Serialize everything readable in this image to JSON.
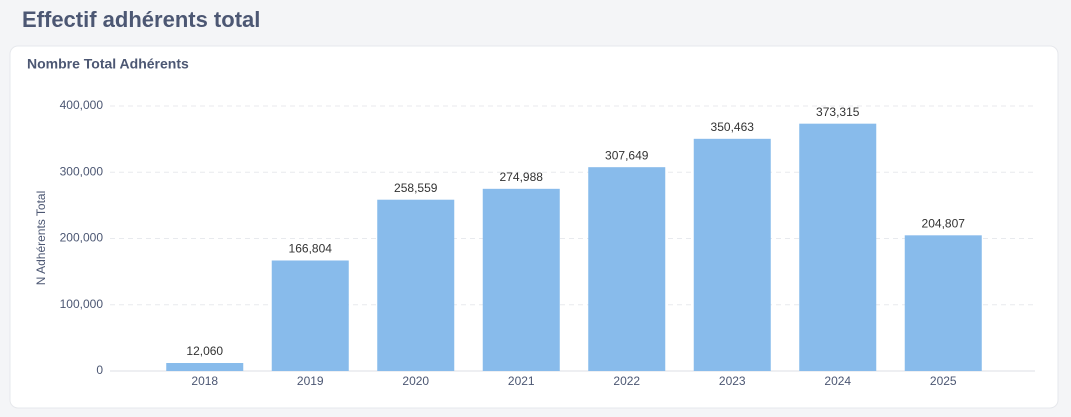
{
  "header": {
    "title": "Effectif adhérents total"
  },
  "chart_data": {
    "type": "bar",
    "title": "Nombre Total Adhérents",
    "y_label": "N Adhérents Total",
    "categories": [
      "2018",
      "2019",
      "2020",
      "2021",
      "2022",
      "2023",
      "2024",
      "2025"
    ],
    "values": [
      12060,
      166804,
      258559,
      274988,
      307649,
      350463,
      373315,
      204807
    ],
    "value_labels": [
      "12,060",
      "166,804",
      "258,559",
      "274,988",
      "307,649",
      "350,463",
      "373,315",
      "204,807"
    ],
    "color": "#88bbeb",
    "ylim": [
      0,
      400000
    ],
    "yticks": [
      0,
      {
        "value": 100000,
        "label": "100,000"
      },
      {
        "value": 200000,
        "label": "200,000"
      },
      {
        "value": 300000,
        "label": "300,000"
      },
      {
        "value": 400000,
        "label": "400,000"
      }
    ],
    "grid": true
  }
}
